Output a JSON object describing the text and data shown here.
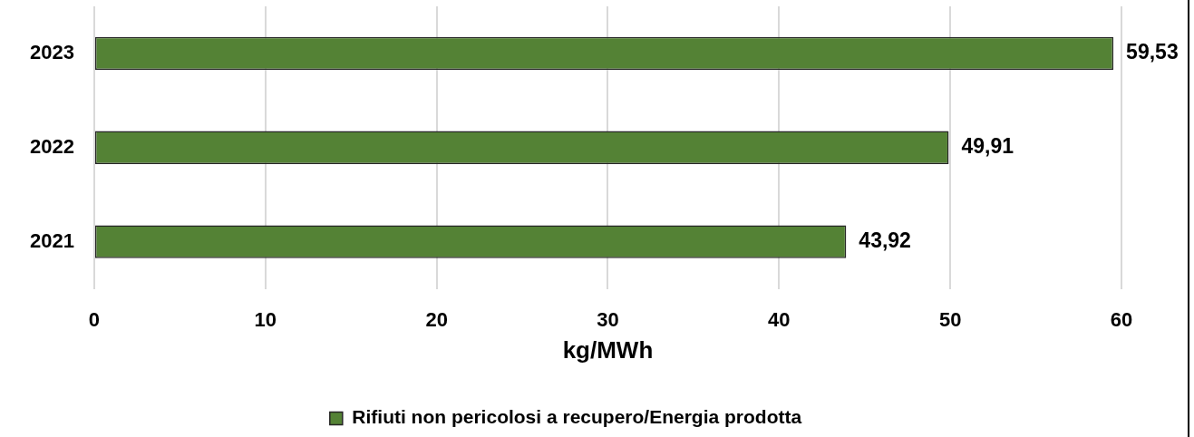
{
  "chart_data": {
    "type": "bar",
    "orientation": "horizontal",
    "categories": [
      "2023",
      "2022",
      "2021"
    ],
    "series": [
      {
        "name": "Rifiuti non pericolosi a recupero/Energia prodotta",
        "color": "#548235",
        "values": [
          59.53,
          49.91,
          43.92
        ],
        "value_labels": [
          "59,53",
          "49,91",
          "43,92"
        ]
      }
    ],
    "xlabel": "kg/MWh",
    "xlim": [
      0,
      60
    ],
    "xticks": [
      0,
      10,
      20,
      30,
      40,
      50,
      60
    ],
    "grid": "x",
    "legend": "bottom"
  }
}
